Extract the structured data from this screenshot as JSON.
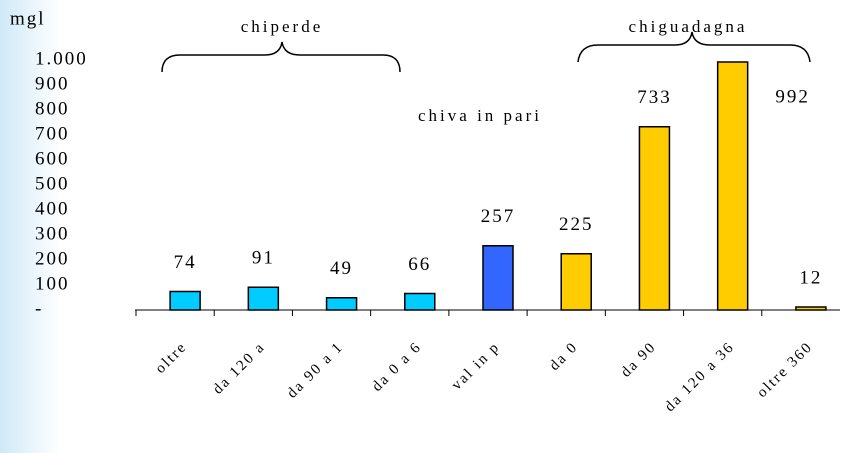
{
  "chart_data": {
    "type": "bar",
    "y_label": "mgl",
    "categories": [
      "oltre",
      "da 120 a",
      "da 90 a 1",
      "da 0 a 6",
      "val in p",
      "da 0",
      "da 90",
      "da 120 a 36",
      "oltre 360"
    ],
    "values": [
      74,
      91,
      49,
      66,
      257,
      225,
      733,
      992,
      12
    ],
    "colors": [
      "#00ccff",
      "#00ccff",
      "#00ccff",
      "#00ccff",
      "#3366ff",
      "#ffcc00",
      "#ffcc00",
      "#ffcc00",
      "#ffcc00"
    ],
    "ylim": [
      0,
      1000
    ],
    "yticks": [
      {
        "value": 0,
        "label": "-"
      },
      100,
      200,
      300,
      400,
      500,
      600,
      700,
      800,
      900,
      {
        "value": 1000,
        "label": "1.000"
      }
    ],
    "annotations": [
      "chiperde",
      "chiva in pari",
      "chiguadagna"
    ]
  }
}
